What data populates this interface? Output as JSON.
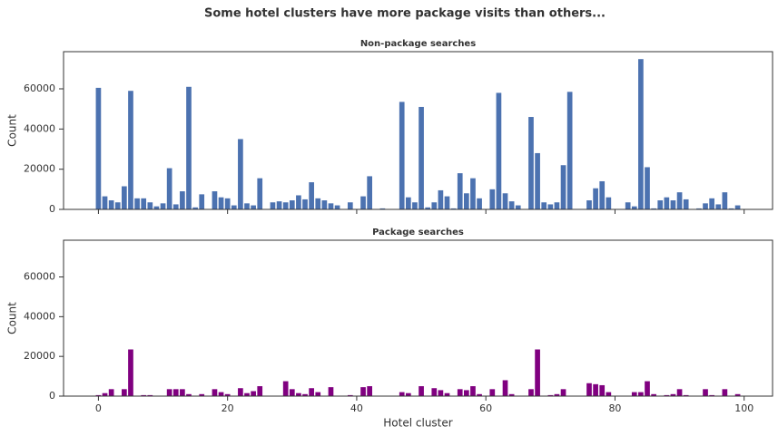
{
  "title": "Some hotel clusters have more package visits than others...",
  "chart_data": [
    {
      "type": "bar",
      "title": "Non-package searches",
      "ylabel": "Count",
      "color": "#4c72b0",
      "x": [
        0,
        1,
        2,
        3,
        4,
        5,
        6,
        7,
        8,
        9,
        10,
        11,
        12,
        13,
        14,
        15,
        16,
        17,
        18,
        19,
        20,
        21,
        22,
        23,
        24,
        25,
        26,
        27,
        28,
        29,
        30,
        31,
        32,
        33,
        34,
        35,
        36,
        37,
        38,
        39,
        40,
        41,
        42,
        43,
        44,
        45,
        46,
        47,
        48,
        49,
        50,
        51,
        52,
        53,
        54,
        55,
        56,
        57,
        58,
        59,
        60,
        61,
        62,
        63,
        64,
        65,
        66,
        67,
        68,
        69,
        70,
        71,
        72,
        73,
        74,
        75,
        76,
        77,
        78,
        79,
        80,
        81,
        82,
        83,
        84,
        85,
        86,
        87,
        88,
        89,
        90,
        91,
        92,
        93,
        94,
        95,
        96,
        97,
        98,
        99
      ],
      "values": [
        60500,
        6500,
        4500,
        3500,
        11500,
        59000,
        5500,
        5500,
        3500,
        1500,
        3000,
        20500,
        2500,
        9000,
        61000,
        1000,
        7500,
        0,
        9000,
        6000,
        5500,
        2000,
        35000,
        3000,
        2000,
        15500,
        0,
        3500,
        4000,
        3500,
        4500,
        7000,
        5000,
        13500,
        5500,
        4500,
        3000,
        2000,
        0,
        3500,
        0,
        6500,
        16500,
        0,
        500,
        0,
        0,
        53500,
        6000,
        3500,
        51000,
        1000,
        3500,
        9500,
        6500,
        500,
        18000,
        8000,
        15500,
        5500,
        0,
        10000,
        58000,
        8000,
        4000,
        2000,
        0,
        46000,
        28000,
        3500,
        2500,
        3500,
        22000,
        58500,
        0,
        0,
        4500,
        10500,
        14000,
        6000,
        0,
        0,
        3500,
        1500,
        74800,
        21000,
        500,
        4500,
        6000,
        4500,
        8500,
        5000,
        0,
        500,
        3000,
        5500,
        2500,
        8500,
        500,
        2000
      ],
      "xlim": [
        -5.4,
        104.4
      ],
      "ylim": [
        0,
        78500
      ],
      "yticks": [
        0,
        20000,
        40000,
        60000
      ]
    },
    {
      "type": "bar",
      "title": "Package searches",
      "xlabel": "Hotel cluster",
      "ylabel": "Count",
      "color": "#800080",
      "x": [
        0,
        1,
        2,
        3,
        4,
        5,
        6,
        7,
        8,
        9,
        10,
        11,
        12,
        13,
        14,
        15,
        16,
        17,
        18,
        19,
        20,
        21,
        22,
        23,
        24,
        25,
        26,
        27,
        28,
        29,
        30,
        31,
        32,
        33,
        34,
        35,
        36,
        37,
        38,
        39,
        40,
        41,
        42,
        43,
        44,
        45,
        46,
        47,
        48,
        49,
        50,
        51,
        52,
        53,
        54,
        55,
        56,
        57,
        58,
        59,
        60,
        61,
        62,
        63,
        64,
        65,
        66,
        67,
        68,
        69,
        70,
        71,
        72,
        73,
        74,
        75,
        76,
        77,
        78,
        79,
        80,
        81,
        82,
        83,
        84,
        85,
        86,
        87,
        88,
        89,
        90,
        91,
        92,
        93,
        94,
        95,
        96,
        97,
        98,
        99
      ],
      "values": [
        500,
        1500,
        3500,
        0,
        3500,
        23500,
        0,
        500,
        500,
        0,
        0,
        3500,
        3500,
        3500,
        1000,
        0,
        1000,
        0,
        3500,
        2000,
        1000,
        0,
        4000,
        1500,
        2500,
        5000,
        0,
        0,
        0,
        7500,
        3500,
        1500,
        1000,
        4000,
        2000,
        0,
        4500,
        0,
        0,
        500,
        0,
        4500,
        5000,
        0,
        0,
        0,
        0,
        2000,
        1500,
        0,
        5000,
        0,
        4000,
        3000,
        1500,
        0,
        3500,
        3000,
        5000,
        1000,
        0,
        3500,
        0,
        8000,
        1000,
        0,
        0,
        3500,
        23500,
        0,
        500,
        1000,
        3500,
        0,
        0,
        0,
        6500,
        6000,
        5500,
        2000,
        0,
        0,
        0,
        2000,
        2000,
        7500,
        1000,
        0,
        500,
        1000,
        3500,
        500,
        0,
        0,
        3500,
        500,
        0,
        3500,
        0,
        1000
      ],
      "xlim": [
        -5.4,
        104.4
      ],
      "ylim": [
        0,
        78500
      ],
      "yticks": [
        0,
        20000,
        40000,
        60000
      ],
      "xticks": [
        0,
        20,
        40,
        60,
        80,
        100
      ]
    }
  ]
}
